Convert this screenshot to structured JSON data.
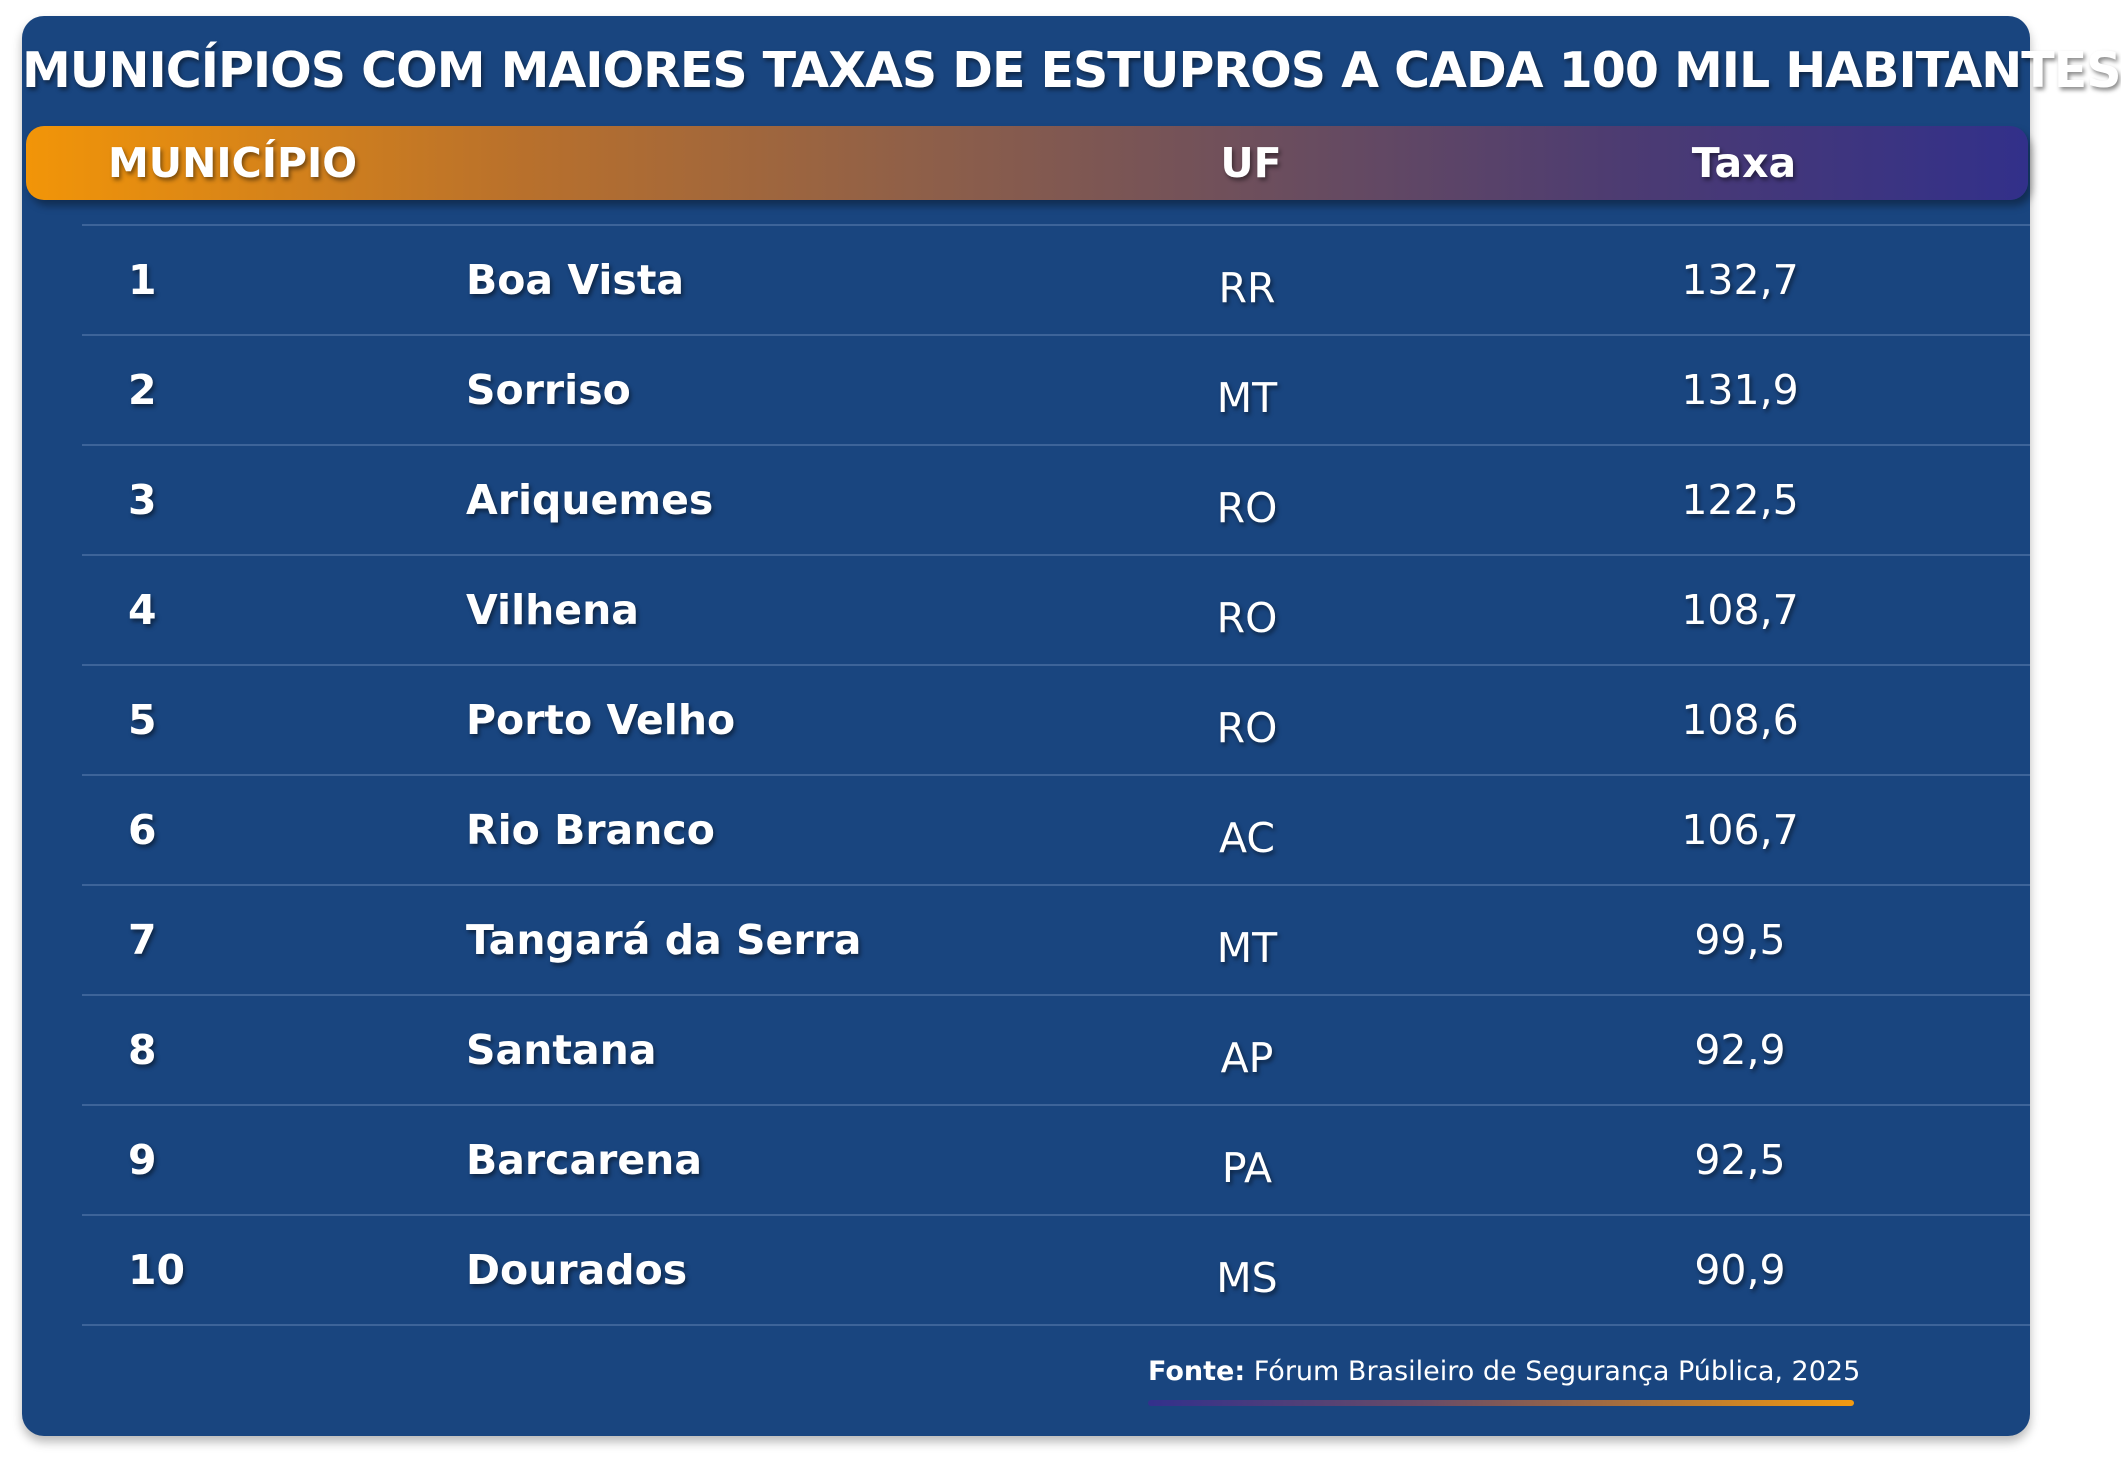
{
  "title": "MUNICÍPIOS COM MAIORES TAXAS DE ESTUPROS A CADA 100 MIL HABITANTES",
  "header": {
    "municipio": "MUNICÍPIO",
    "uf": "UF",
    "taxa": "Taxa"
  },
  "rows": [
    {
      "rank": "1",
      "municipio": "Boa Vista",
      "uf": "RR",
      "taxa": "132,7"
    },
    {
      "rank": "2",
      "municipio": "Sorriso",
      "uf": "MT",
      "taxa": "131,9"
    },
    {
      "rank": "3",
      "municipio": "Ariquemes",
      "uf": "RO",
      "taxa": "122,5"
    },
    {
      "rank": "4",
      "municipio": "Vilhena",
      "uf": "RO",
      "taxa": "108,7"
    },
    {
      "rank": "5",
      "municipio": "Porto Velho",
      "uf": "RO",
      "taxa": "108,6"
    },
    {
      "rank": "6",
      "municipio": "Rio Branco",
      "uf": "AC",
      "taxa": "106,7"
    },
    {
      "rank": "7",
      "municipio": "Tangará da Serra",
      "uf": "MT",
      "taxa": "99,5"
    },
    {
      "rank": "8",
      "municipio": "Santana",
      "uf": "AP",
      "taxa": "92,9"
    },
    {
      "rank": "9",
      "municipio": "Barcarena",
      "uf": "PA",
      "taxa": "92,5"
    },
    {
      "rank": "10",
      "municipio": "Dourados",
      "uf": "MS",
      "taxa": "90,9"
    }
  ],
  "source": {
    "label": "Fonte:",
    "text": "Fórum Brasileiro de Segurança Pública, 2025"
  },
  "colors": {
    "background": "#19457f",
    "header_gradient_start": "#f29508",
    "header_gradient_end": "#32308a",
    "text": "#ffffff",
    "row_divider": "#3d6499"
  },
  "chart_data": {
    "type": "table",
    "title": "MUNICÍPIOS COM MAIORES TAXAS DE ESTUPROS A CADA 100 MIL HABITANTES",
    "columns": [
      "MUNICÍPIO",
      "UF",
      "Taxa"
    ],
    "rows": [
      [
        "1",
        "Boa Vista",
        "RR",
        132.7
      ],
      [
        "2",
        "Sorriso",
        "MT",
        131.9
      ],
      [
        "3",
        "Ariquemes",
        "RO",
        122.5
      ],
      [
        "4",
        "Vilhena",
        "RO",
        108.7
      ],
      [
        "5",
        "Porto Velho",
        "RO",
        108.6
      ],
      [
        "6",
        "Rio Branco",
        "AC",
        106.7
      ],
      [
        "7",
        "Tangará da Serra",
        "MT",
        99.5
      ],
      [
        "8",
        "Santana",
        "AP",
        92.9
      ],
      [
        "9",
        "Barcarena",
        "PA",
        92.5
      ],
      [
        "10",
        "Dourados",
        "MS",
        90.9
      ]
    ]
  }
}
